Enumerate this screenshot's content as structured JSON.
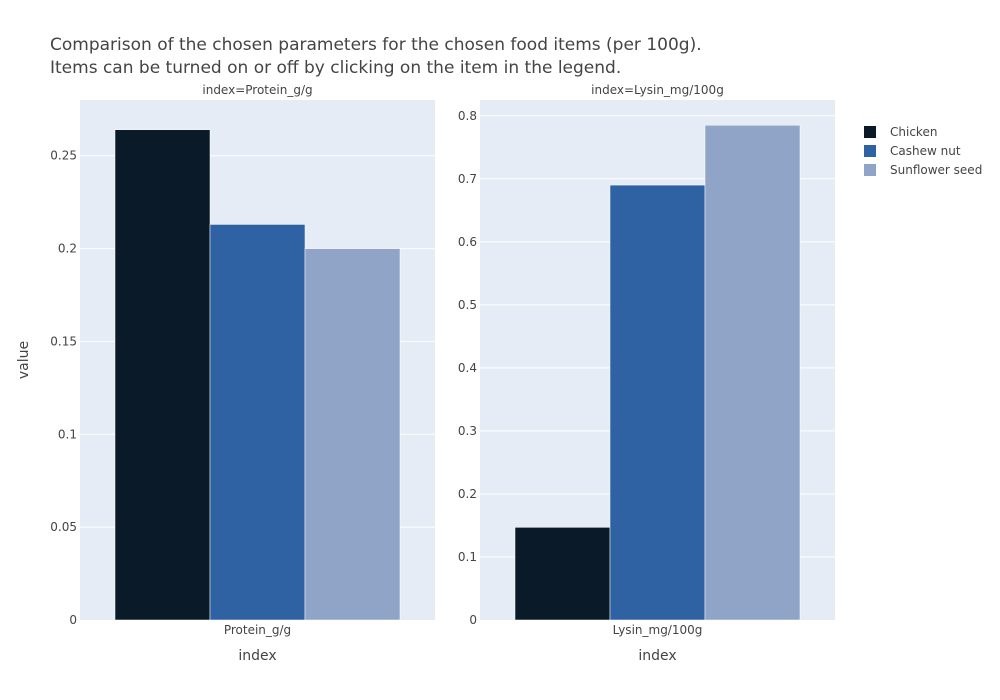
{
  "title_line1": "Comparison of the chosen parameters for the chosen food items (per 100g).",
  "title_line2": "Items can be turned on or off by clicking on the item in the legend.",
  "chart_data": {
    "type": "bar",
    "ylabel": "value",
    "legend_position": "top-right",
    "grid": true,
    "series": [
      {
        "name": "Chicken",
        "color": "#0b1a28"
      },
      {
        "name": "Cashew nut",
        "color": "#2e62a2"
      },
      {
        "name": "Sunflower seed",
        "color": "#8fa4c7"
      }
    ],
    "panels": [
      {
        "facet_label": "index=Protein_g/g",
        "category": "Protein_g/g",
        "xlabel": "index",
        "ylim": [
          0,
          0.28
        ],
        "yticks": [
          0,
          0.05,
          0.1,
          0.15,
          0.2,
          0.25
        ],
        "ytick_labels": [
          "0",
          "0.05",
          "0.1",
          "0.15",
          "0.2",
          "0.25"
        ],
        "values": [
          0.264,
          0.213,
          0.2
        ]
      },
      {
        "facet_label": "index=Lysin_mg/100g",
        "category": "Lysin_mg/100g",
        "xlabel": "index",
        "ylim": [
          0,
          0.825
        ],
        "yticks": [
          0,
          0.1,
          0.2,
          0.3,
          0.4,
          0.5,
          0.6,
          0.7,
          0.8
        ],
        "ytick_labels": [
          "0",
          "0.1",
          "0.2",
          "0.3",
          "0.4",
          "0.5",
          "0.6",
          "0.7",
          "0.8"
        ],
        "values": [
          0.147,
          0.69,
          0.785
        ]
      }
    ]
  }
}
